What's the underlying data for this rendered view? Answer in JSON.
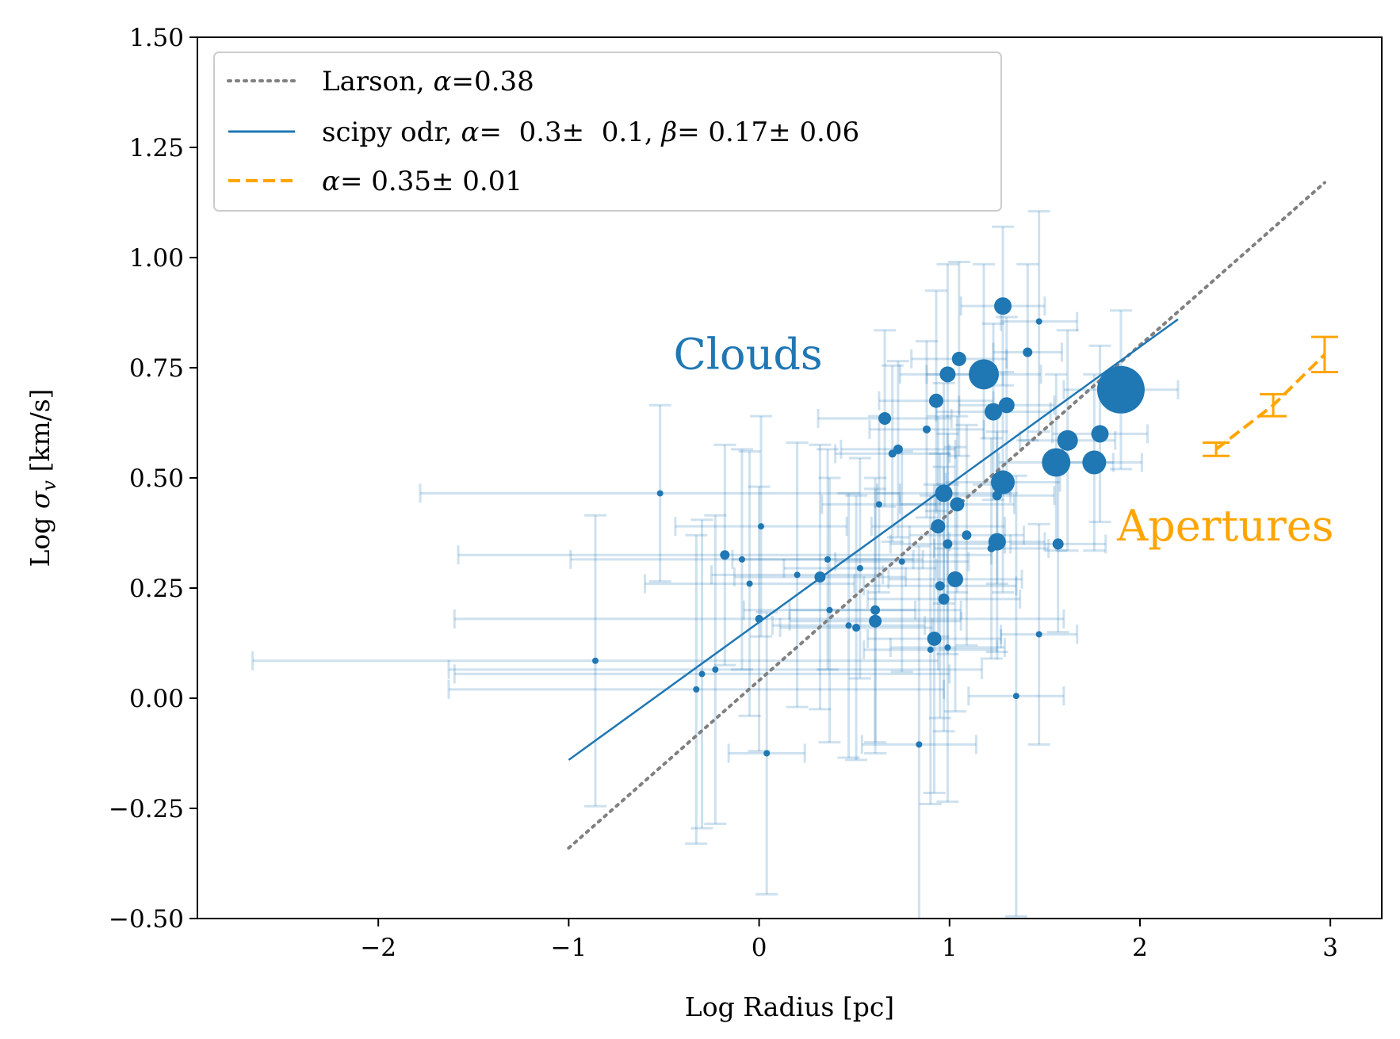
{
  "chart_data": {
    "type": "scatter",
    "xlabel": "Log Radius [pc]",
    "ylabel_base": "Log ",
    "ylabel_symbol": "σ",
    "ylabel_subscript": "v",
    "ylabel_unit": " [km/s]",
    "xlim": [
      -2.95,
      3.27
    ],
    "ylim": [
      -0.5,
      1.5
    ],
    "x_ticks": [
      -2,
      -1,
      0,
      1,
      2,
      3
    ],
    "x_tick_labels": [
      "−2",
      "−1",
      "0",
      "1",
      "2",
      "3"
    ],
    "y_ticks": [
      -0.5,
      -0.25,
      0.0,
      0.25,
      0.5,
      0.75,
      1.0,
      1.25,
      1.5
    ],
    "y_tick_labels": [
      "−0.50",
      "−0.25",
      "0.00",
      "0.25",
      "0.50",
      "0.75",
      "1.00",
      "1.25",
      "1.50"
    ],
    "colors": {
      "clouds": "#1f77b4",
      "apertures": "#ffa500",
      "larson": "#808080"
    },
    "annotations": {
      "clouds": {
        "text": "Clouds",
        "x": -0.45,
        "y": 0.78
      },
      "apertures": {
        "text": "Apertures",
        "x": 1.88,
        "y": 0.39
      }
    },
    "legend": {
      "placement": "top-left",
      "entries": [
        {
          "prefix": "Larson, ",
          "alpha": "α",
          "rest": "=0.38",
          "style": "dotted"
        },
        {
          "prefix": "scipy odr, ",
          "alpha": "α",
          "rest": "=  0.3±  0.1, ",
          "beta": "β",
          "rest2": "= 0.17± 0.06",
          "style": "solid"
        },
        {
          "prefix": "",
          "alpha": "α",
          "rest": "= 0.35± 0.01",
          "style": "dashed"
        }
      ]
    },
    "larson_line": {
      "x": [
        -1.0,
        2.97
      ],
      "y": [
        -0.34,
        1.17
      ]
    },
    "odr_fit": {
      "x": [
        -1.0,
        2.2
      ],
      "y": [
        -0.14,
        0.86
      ]
    },
    "apertures": {
      "x": [
        2.4,
        2.7,
        2.97
      ],
      "y": [
        0.565,
        0.665,
        0.78
      ],
      "yerr": [
        0.015,
        0.025,
        0.04
      ]
    },
    "clouds": {
      "points": [
        {
          "x": 1.28,
          "y": 0.89,
          "s": 11,
          "xerr": 0.22,
          "yerr": 0.18
        },
        {
          "x": 1.47,
          "y": 0.855,
          "s": 4,
          "xerr": 0.2,
          "yerr": 0.25
        },
        {
          "x": 1.41,
          "y": 0.785,
          "s": 6,
          "xerr": 0.18,
          "yerr": 0.2
        },
        {
          "x": 1.05,
          "y": 0.77,
          "s": 9,
          "xerr": 0.25,
          "yerr": 0.22
        },
        {
          "x": 1.18,
          "y": 0.735,
          "s": 19,
          "xerr": 0.3,
          "yerr": 0.25
        },
        {
          "x": 0.99,
          "y": 0.735,
          "s": 10,
          "xerr": 0.25,
          "yerr": 0.25
        },
        {
          "x": 1.9,
          "y": 0.7,
          "s": 30,
          "xerr": 0.3,
          "yerr": 0.18
        },
        {
          "x": 0.93,
          "y": 0.675,
          "s": 9,
          "xerr": 0.3,
          "yerr": 0.25
        },
        {
          "x": 1.3,
          "y": 0.665,
          "s": 10,
          "xerr": 0.25,
          "yerr": 0.2
        },
        {
          "x": 1.23,
          "y": 0.65,
          "s": 11,
          "xerr": 0.3,
          "yerr": 0.2
        },
        {
          "x": 0.66,
          "y": 0.635,
          "s": 8,
          "xerr": 0.35,
          "yerr": 0.2
        },
        {
          "x": 0.88,
          "y": 0.61,
          "s": 5,
          "xerr": 0.3,
          "yerr": 0.2
        },
        {
          "x": 1.62,
          "y": 0.585,
          "s": 13,
          "xerr": 0.25,
          "yerr": 0.25
        },
        {
          "x": 1.79,
          "y": 0.6,
          "s": 11,
          "xerr": 0.25,
          "yerr": 0.2
        },
        {
          "x": 0.73,
          "y": 0.565,
          "s": 6,
          "xerr": 0.3,
          "yerr": 0.2
        },
        {
          "x": 0.7,
          "y": 0.555,
          "s": 5,
          "xerr": 0.3,
          "yerr": 0.2
        },
        {
          "x": 1.56,
          "y": 0.535,
          "s": 18,
          "xerr": 0.3,
          "yerr": 0.2
        },
        {
          "x": 1.76,
          "y": 0.535,
          "s": 15,
          "xerr": 0.25,
          "yerr": 0.2
        },
        {
          "x": 1.28,
          "y": 0.49,
          "s": 15,
          "xerr": 0.3,
          "yerr": 0.25
        },
        {
          "x": 0.97,
          "y": 0.465,
          "s": 11,
          "xerr": 0.35,
          "yerr": 0.25
        },
        {
          "x": 1.25,
          "y": 0.46,
          "s": 6,
          "xerr": 0.3,
          "yerr": 0.2
        },
        {
          "x": -0.52,
          "y": 0.465,
          "s": 4,
          "xerr": 1.26,
          "yerr": 0.2
        },
        {
          "x": 0.63,
          "y": 0.44,
          "s": 4,
          "xerr": 0.3,
          "yerr": 0.2
        },
        {
          "x": 1.04,
          "y": 0.44,
          "s": 9,
          "xerr": 0.3,
          "yerr": 0.2
        },
        {
          "x": 0.94,
          "y": 0.39,
          "s": 9,
          "xerr": 0.35,
          "yerr": 0.25
        },
        {
          "x": 0.01,
          "y": 0.39,
          "s": 4,
          "xerr": 0.45,
          "yerr": 0.25
        },
        {
          "x": 1.09,
          "y": 0.37,
          "s": 6,
          "xerr": 0.3,
          "yerr": 0.25
        },
        {
          "x": 1.25,
          "y": 0.355,
          "s": 11,
          "xerr": 0.25,
          "yerr": 0.25
        },
        {
          "x": 1.57,
          "y": 0.35,
          "s": 7,
          "xerr": 0.25,
          "yerr": 0.2
        },
        {
          "x": 0.99,
          "y": 0.35,
          "s": 6,
          "xerr": 0.3,
          "yerr": 0.25
        },
        {
          "x": 1.22,
          "y": 0.34,
          "s": 5,
          "xerr": 0.3,
          "yerr": 0.25
        },
        {
          "x": -0.18,
          "y": 0.325,
          "s": 6,
          "xerr": 1.4,
          "yerr": 0.25
        },
        {
          "x": -0.09,
          "y": 0.315,
          "s": 4,
          "xerr": 0.9,
          "yerr": 0.25
        },
        {
          "x": 0.36,
          "y": 0.315,
          "s": 4,
          "xerr": 0.5,
          "yerr": 0.25
        },
        {
          "x": 0.75,
          "y": 0.31,
          "s": 4,
          "xerr": 0.35,
          "yerr": 0.25
        },
        {
          "x": 0.53,
          "y": 0.295,
          "s": 4,
          "xerr": 0.4,
          "yerr": 0.25
        },
        {
          "x": 0.2,
          "y": 0.28,
          "s": 4,
          "xerr": 0.45,
          "yerr": 0.3
        },
        {
          "x": 0.32,
          "y": 0.275,
          "s": 7,
          "xerr": 0.45,
          "yerr": 0.3
        },
        {
          "x": 1.03,
          "y": 0.27,
          "s": 10,
          "xerr": 0.35,
          "yerr": 0.3
        },
        {
          "x": -0.05,
          "y": 0.26,
          "s": 4,
          "xerr": 0.55,
          "yerr": 0.3
        },
        {
          "x": 0.95,
          "y": 0.255,
          "s": 6,
          "xerr": 0.4,
          "yerr": 0.3
        },
        {
          "x": 0.97,
          "y": 0.225,
          "s": 7,
          "xerr": 0.4,
          "yerr": 0.3
        },
        {
          "x": 0.61,
          "y": 0.2,
          "s": 6,
          "xerr": 0.45,
          "yerr": 0.3
        },
        {
          "x": 0.37,
          "y": 0.2,
          "s": 4,
          "xerr": 0.45,
          "yerr": 0.3
        },
        {
          "x": 0.0,
          "y": 0.18,
          "s": 5,
          "xerr": 1.6,
          "yerr": 0.3
        },
        {
          "x": 0.61,
          "y": 0.175,
          "s": 8,
          "xerr": 0.45,
          "yerr": 0.3
        },
        {
          "x": 0.47,
          "y": 0.165,
          "s": 4,
          "xerr": 0.4,
          "yerr": 0.3
        },
        {
          "x": 0.51,
          "y": 0.16,
          "s": 5,
          "xerr": 0.4,
          "yerr": 0.3
        },
        {
          "x": 1.47,
          "y": 0.145,
          "s": 4,
          "xerr": 0.2,
          "yerr": 0.25
        },
        {
          "x": 0.92,
          "y": 0.135,
          "s": 9,
          "xerr": 0.35,
          "yerr": 0.35
        },
        {
          "x": 0.99,
          "y": 0.115,
          "s": 4,
          "xerr": 0.3,
          "yerr": 0.35
        },
        {
          "x": 0.9,
          "y": 0.11,
          "s": 4,
          "xerr": 0.35,
          "yerr": 0.35
        },
        {
          "x": -0.86,
          "y": 0.085,
          "s": 4,
          "xerr": 1.8,
          "yerr": 0.33
        },
        {
          "x": -0.23,
          "y": 0.065,
          "s": 4,
          "xerr": 1.4,
          "yerr": 0.35
        },
        {
          "x": -0.3,
          "y": 0.055,
          "s": 4,
          "xerr": 1.3,
          "yerr": 0.35
        },
        {
          "x": -0.33,
          "y": 0.02,
          "s": 4,
          "xerr": 1.3,
          "yerr": 0.35
        },
        {
          "x": 1.35,
          "y": 0.005,
          "s": 4,
          "xerr": 0.25,
          "yerr": 0.5
        },
        {
          "x": 0.84,
          "y": -0.105,
          "s": 4,
          "xerr": 0.3,
          "yerr": 0.45
        },
        {
          "x": 0.04,
          "y": -0.125,
          "s": 4,
          "xerr": 0.2,
          "yerr": 0.32
        }
      ]
    }
  }
}
